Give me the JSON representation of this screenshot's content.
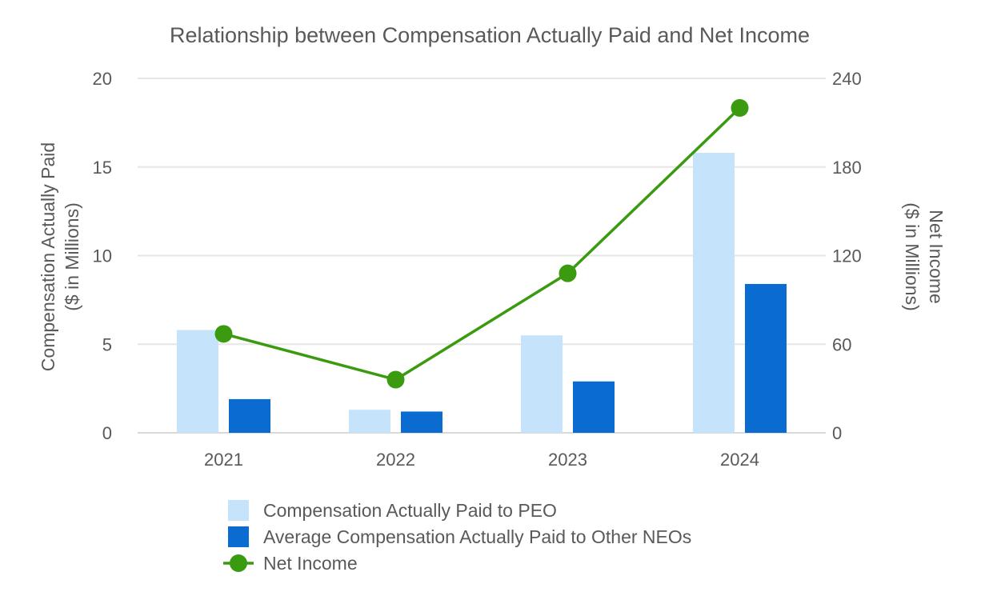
{
  "chart_data": {
    "type": "bar",
    "title": "Relationship between Compensation Actually Paid and Net Income",
    "categories": [
      "2021",
      "2022",
      "2023",
      "2024"
    ],
    "y_left": {
      "label_lines": [
        "Compensation Actually Paid",
        "($ in Millions)"
      ],
      "range": [
        0,
        20
      ],
      "ticks": [
        "0",
        "5",
        "10",
        "15",
        "20"
      ]
    },
    "y_right": {
      "label_lines": [
        "Net Income",
        "($ in Millions)"
      ],
      "range": [
        0,
        240
      ],
      "ticks": [
        "0",
        "60",
        "120",
        "180",
        "240"
      ]
    },
    "series": [
      {
        "name": "Compensation Actually Paid to PEO",
        "type": "bar",
        "axis": "left",
        "color": "#c5e4fb",
        "values": [
          5.8,
          1.3,
          5.5,
          15.8
        ]
      },
      {
        "name": "Average Compensation Actually Paid to Other NEOs",
        "type": "bar",
        "axis": "left",
        "color": "#0a6bd1",
        "values": [
          1.9,
          1.2,
          2.9,
          8.4
        ]
      },
      {
        "name": "Net Income",
        "type": "line",
        "axis": "right",
        "color": "#3a9a10",
        "values": [
          67,
          36,
          108,
          220
        ]
      }
    ],
    "grid": true,
    "legend_position": "bottom"
  }
}
